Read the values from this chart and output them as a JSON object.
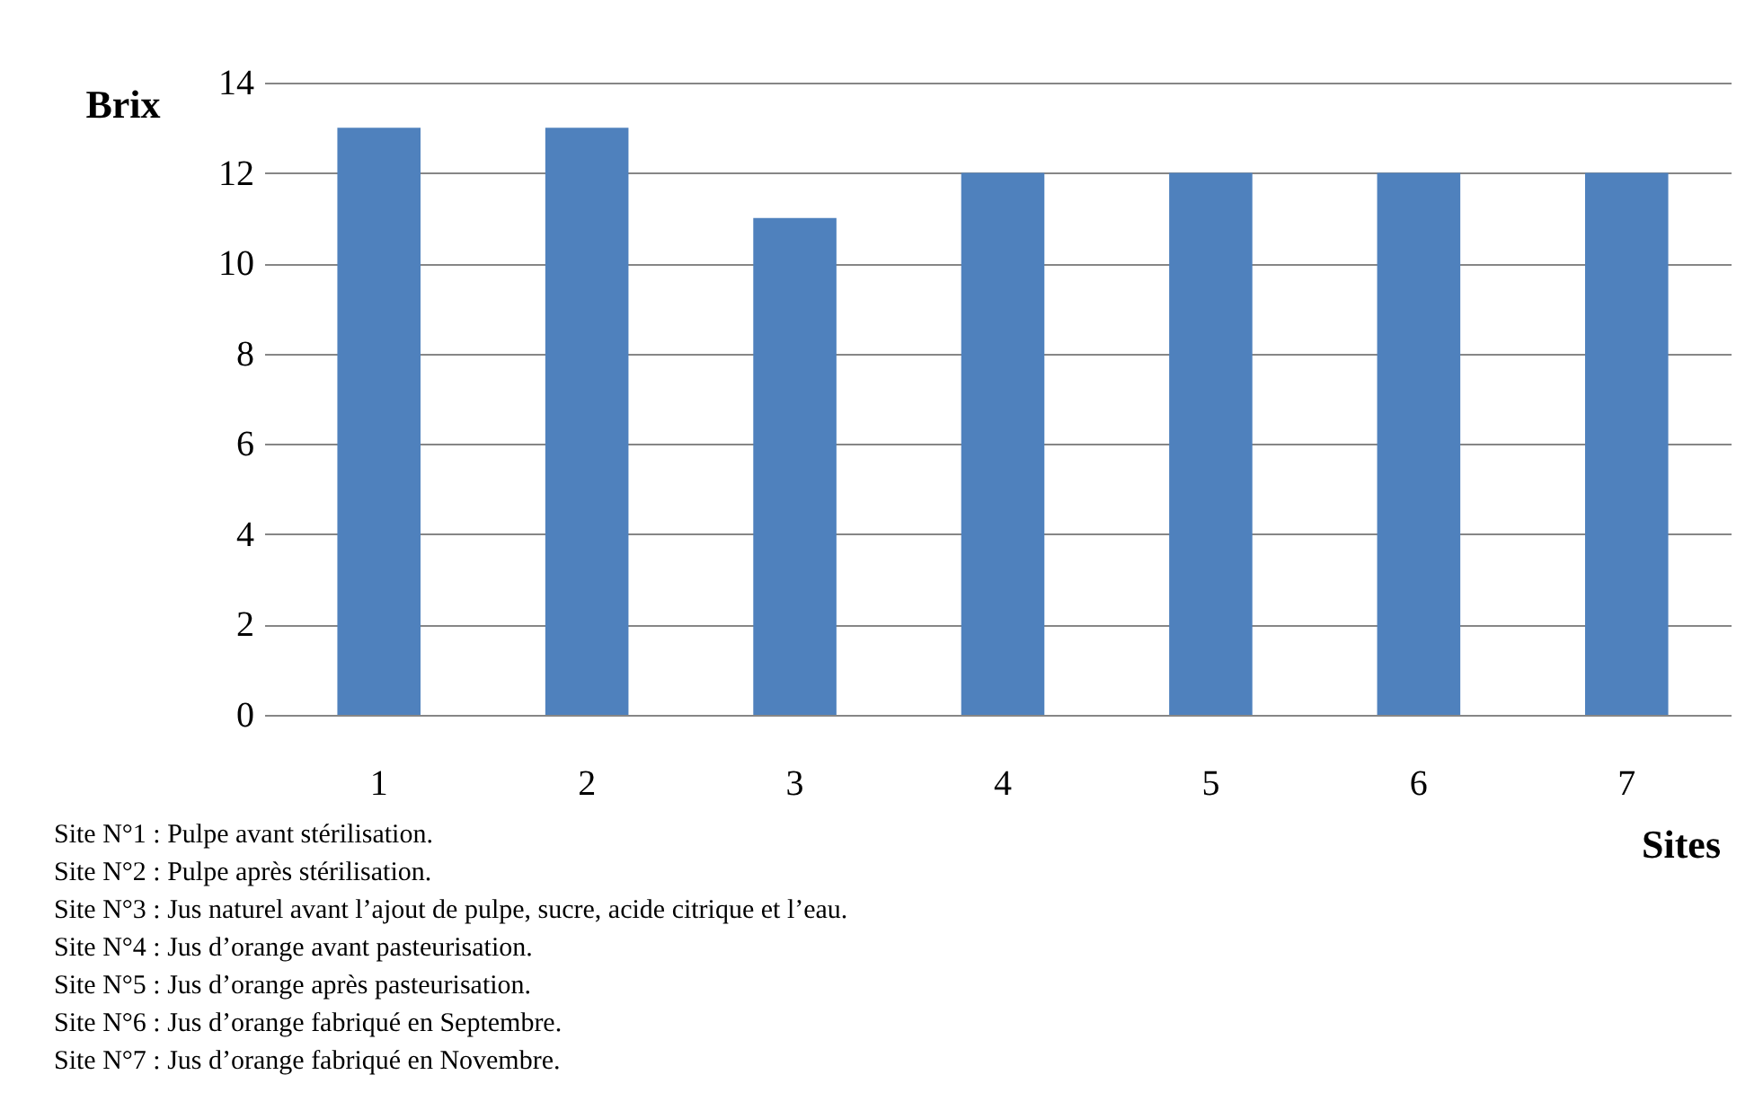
{
  "chart_data": {
    "type": "bar",
    "categories": [
      "1",
      "2",
      "3",
      "4",
      "5",
      "6",
      "7"
    ],
    "values": [
      13,
      13,
      11,
      12,
      12,
      12,
      12
    ],
    "color": "#4f81bd",
    "ylabel": "Brix",
    "xlabel": "Sites",
    "ylim": [
      0,
      14
    ],
    "yticks": [
      0,
      2,
      4,
      6,
      8,
      10,
      12,
      14
    ],
    "grid": "y",
    "annotations": [
      "Site N°1 : Pulpe avant stérilisation.",
      "Site N°2 : Pulpe après stérilisation.",
      "Site N°3 : Jus naturel avant l’ajout de pulpe, sucre, acide citrique et l’eau.",
      "Site N°4 : Jus d’orange avant pasteurisation.",
      "Site N°5 : Jus d’orange après pasteurisation.",
      "Site N°6 : Jus d’orange fabriqué en Septembre.",
      "Site N°7 : Jus d’orange fabriqué en Novembre."
    ]
  }
}
